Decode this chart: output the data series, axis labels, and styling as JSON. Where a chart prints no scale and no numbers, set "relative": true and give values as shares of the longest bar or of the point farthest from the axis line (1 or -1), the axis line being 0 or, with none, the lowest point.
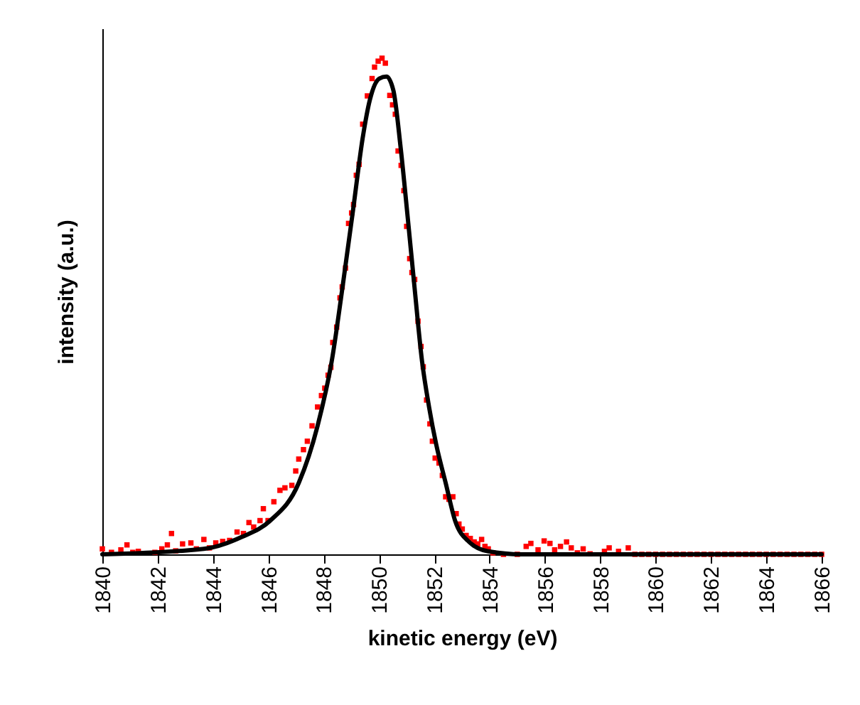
{
  "chart_data": {
    "type": "scatter",
    "xlabel": "kinetic energy (eV)",
    "ylabel": "intensity (a.u.)",
    "relative": true,
    "xlim": [
      1840,
      1866
    ],
    "xticks": [
      1840,
      1842,
      1844,
      1846,
      1848,
      1850,
      1852,
      1854,
      1856,
      1858,
      1860,
      1862,
      1864,
      1866
    ],
    "grid": false,
    "series": [
      {
        "marker": "square",
        "color": "#ff0000",
        "x": [
          1840.0,
          1840.33,
          1840.67,
          1840.89,
          1841.1,
          1841.3,
          1841.9,
          1842.15,
          1842.35,
          1842.5,
          1842.65,
          1842.9,
          1843.2,
          1843.4,
          1843.67,
          1843.87,
          1844.1,
          1844.35,
          1844.6,
          1844.87,
          1845.1,
          1845.3,
          1845.47,
          1845.7,
          1845.82,
          1845.99,
          1846.2,
          1846.42,
          1846.6,
          1846.85,
          1846.99,
          1847.1,
          1847.27,
          1847.41,
          1847.58,
          1847.78,
          1847.92,
          1848.04,
          1848.16,
          1848.26,
          1848.33,
          1848.47,
          1848.59,
          1848.67,
          1848.79,
          1848.9,
          1849.01,
          1849.08,
          1849.18,
          1849.28,
          1849.41,
          1849.58,
          1849.75,
          1849.84,
          1849.97,
          1850.11,
          1850.23,
          1850.39,
          1850.49,
          1850.59,
          1850.69,
          1850.8,
          1850.9,
          1851.0,
          1851.11,
          1851.19,
          1851.29,
          1851.41,
          1851.52,
          1851.6,
          1851.72,
          1851.84,
          1851.93,
          1852.03,
          1852.17,
          1852.29,
          1852.41,
          1852.53,
          1852.67,
          1852.79,
          1852.89,
          1853.01,
          1853.15,
          1853.3,
          1853.44,
          1853.57,
          1853.71,
          1853.83,
          1853.95,
          1854.12,
          1854.5,
          1855.0,
          1855.32,
          1855.49,
          1855.75,
          1855.97,
          1856.18,
          1856.35,
          1856.56,
          1856.78,
          1856.95,
          1857.17,
          1857.38,
          1857.63,
          1858.15,
          1858.32,
          1858.66,
          1859.01,
          1859.25,
          1859.5,
          1859.75,
          1860.0,
          1860.25,
          1860.5,
          1860.75,
          1861.0,
          1861.25,
          1861.5,
          1861.75,
          1862.0,
          1862.25,
          1862.5,
          1862.75,
          1863.0,
          1863.25,
          1863.5,
          1863.75,
          1864.0,
          1864.25,
          1864.5,
          1864.75,
          1865.0,
          1865.25,
          1865.5,
          1865.75,
          1866.0
        ],
        "values": [
          0.011,
          0.004,
          0.009,
          0.019,
          0.004,
          0.006,
          0.004,
          0.011,
          0.019,
          0.042,
          0.007,
          0.021,
          0.023,
          0.011,
          0.03,
          0.013,
          0.023,
          0.026,
          0.028,
          0.045,
          0.042,
          0.064,
          0.055,
          0.068,
          0.092,
          0.068,
          0.106,
          0.129,
          0.134,
          0.139,
          0.168,
          0.192,
          0.211,
          0.228,
          0.259,
          0.297,
          0.32,
          0.335,
          0.361,
          0.377,
          0.427,
          0.458,
          0.517,
          0.539,
          0.577,
          0.667,
          0.688,
          0.705,
          0.764,
          0.786,
          0.867,
          0.924,
          0.959,
          0.982,
          0.994,
          1.0,
          0.99,
          0.925,
          0.906,
          0.887,
          0.813,
          0.784,
          0.733,
          0.661,
          0.596,
          0.568,
          0.554,
          0.47,
          0.419,
          0.378,
          0.311,
          0.263,
          0.228,
          0.194,
          0.184,
          0.159,
          0.116,
          0.111,
          0.116,
          0.082,
          0.061,
          0.051,
          0.038,
          0.032,
          0.025,
          0.021,
          0.03,
          0.016,
          0.011,
          0.003,
          0,
          0,
          0.016,
          0.022,
          0.009,
          0.027,
          0.022,
          0.009,
          0.016,
          0.025,
          0.013,
          0.003,
          0.011,
          0.001,
          0.006,
          0.013,
          0.006,
          0.013,
          0,
          0,
          0,
          0,
          0,
          0,
          0,
          0,
          0,
          0,
          0,
          0,
          0,
          0,
          0,
          0,
          0,
          0,
          0,
          0,
          0,
          0,
          0,
          0,
          0,
          0,
          0,
          0
        ]
      },
      {
        "type": "line",
        "marker": "none",
        "line_style": "solid",
        "color": "#000000",
        "x": [
          1840,
          1843.67,
          1845.04,
          1846.07,
          1847.1,
          1847.78,
          1848.3,
          1848.72,
          1849.07,
          1849.41,
          1849.67,
          1850.01,
          1850.27,
          1850.52,
          1850.78,
          1851.04,
          1851.29,
          1851.55,
          1851.81,
          1852.07,
          1852.41,
          1852.75,
          1853.26,
          1853.95,
          1855.15,
          1859,
          1866
        ],
        "values": [
          0,
          0.011,
          0.035,
          0.068,
          0.144,
          0.259,
          0.392,
          0.554,
          0.697,
          0.839,
          0.916,
          0.959,
          0.963,
          0.935,
          0.821,
          0.678,
          0.535,
          0.392,
          0.297,
          0.221,
          0.144,
          0.068,
          0.025,
          0.006,
          0,
          0,
          0
        ]
      }
    ]
  }
}
